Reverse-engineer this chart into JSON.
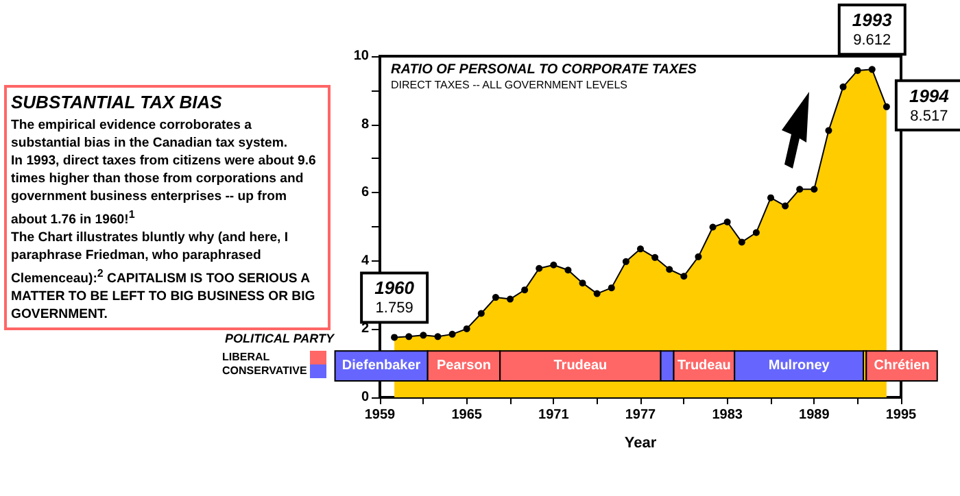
{
  "chart_data": {
    "type": "area",
    "title": "RATIO OF PERSONAL TO CORPORATE TAXES",
    "subtitle": "DIRECT TAXES -- ALL GOVERNMENT LEVELS",
    "xlabel": "Year",
    "x": [
      1960,
      1961,
      1962,
      1963,
      1964,
      1965,
      1966,
      1967,
      1968,
      1969,
      1970,
      1971,
      1972,
      1973,
      1974,
      1975,
      1976,
      1977,
      1978,
      1979,
      1980,
      1981,
      1982,
      1983,
      1984,
      1985,
      1986,
      1987,
      1988,
      1989,
      1990,
      1991,
      1992,
      1993,
      1994
    ],
    "series": [
      {
        "color": "#ffcc00",
        "values": [
          1.759,
          1.78,
          1.82,
          1.78,
          1.85,
          2.01,
          2.46,
          2.93,
          2.88,
          3.15,
          3.78,
          3.88,
          3.73,
          3.35,
          3.04,
          3.21,
          3.98,
          4.35,
          4.1,
          3.75,
          3.55,
          4.12,
          4.99,
          5.14,
          4.55,
          4.83,
          5.85,
          5.61,
          6.1,
          6.1,
          7.82,
          9.1,
          9.58,
          9.612,
          8.517
        ]
      }
    ],
    "xlim": [
      1959,
      1995
    ],
    "xticks": [
      1959,
      {
        "value": 1962,
        "label": null
      },
      1965,
      {
        "value": 1968,
        "label": null
      },
      1971,
      {
        "value": 1974,
        "label": null
      },
      1977,
      {
        "value": 1980,
        "label": null
      },
      1983,
      {
        "value": 1986,
        "label": null
      },
      1989,
      {
        "value": 1992,
        "label": null
      },
      1995
    ],
    "ylim": [
      0,
      10
    ],
    "yticks": [
      0,
      {
        "value": 1,
        "label": null
      },
      2,
      {
        "value": 3,
        "label": null
      },
      4,
      {
        "value": 5,
        "label": null
      },
      6,
      {
        "value": 7,
        "label": null
      },
      8,
      {
        "value": 9,
        "label": null
      },
      10
    ],
    "marker": "circle",
    "grid": false,
    "bands": [
      {
        "axis": "x",
        "from": 1955.9,
        "to": 1962.3,
        "label": "Diefenbaker",
        "color": "#6666ff"
      },
      {
        "axis": "x",
        "from": 1962.3,
        "to": 1967.3,
        "label": "Pearson",
        "color": "#ff6666"
      },
      {
        "axis": "x",
        "from": 1967.3,
        "to": 1978.4,
        "label": "Trudeau",
        "color": "#ff6666"
      },
      {
        "axis": "x",
        "from": 1978.4,
        "to": 1979.3,
        "color": "#6666ff"
      },
      {
        "axis": "x",
        "from": 1979.3,
        "to": 1983.5,
        "label": "Trudeau",
        "color": "#ff6666"
      },
      {
        "axis": "x",
        "from": 1983.5,
        "to": 1992.4,
        "label": "Mulroney",
        "color": "#6666ff"
      },
      {
        "axis": "x",
        "from": 1992.4,
        "to": 1992.6,
        "color": "#ffcc00"
      },
      {
        "axis": "x",
        "from": 1992.6,
        "to": 1997.5,
        "label": "Chrétien",
        "color": "#ff6666"
      }
    ],
    "annotations": [
      "SUBSTANTIAL TAX BIAS",
      "The empirical evidence corroborates a substantial bias in the Canadian tax system.\n  In 1993, direct taxes from citizens were about 9.6 times higher than those from corporations and government business enterprises -- up from about 1.76 in 1960!$^{1}$\n  The Chart illustrates bluntly why (and here, I paraphrase Friedman, who paraphrased Clemenceau):$^{2}$ CAPITALISM IS TOO SERIOUS A MATTER TO BE LEFT TO BIG BUSINESS OR BIG GOVERNMENT.",
      "POLITICAL PARTY",
      "LIBERAL",
      "CONSERVATIVE",
      {
        "text": "1960\n1.759",
        "x": 1960,
        "y": 1.759
      },
      {
        "text": "1993\n9.612",
        "x": 1993,
        "y": 9.612
      },
      {
        "text": "1994\n8.517",
        "x": 1994,
        "y": 8.517
      }
    ]
  }
}
